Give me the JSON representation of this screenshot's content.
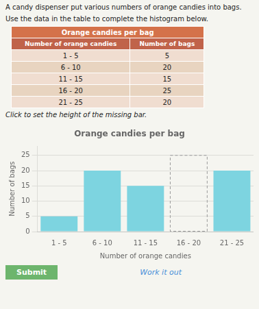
{
  "chart_data": {
    "type": "bar",
    "title": "Orange candies per bag",
    "xlabel": "Number of orange candies",
    "ylabel": "Number of bags",
    "categories": [
      "1 - 5",
      "6 - 10",
      "11 - 15",
      "16 - 20",
      "21 - 25"
    ],
    "values": [
      5,
      20,
      15,
      25,
      20
    ],
    "colors": [
      "#7dd4e0",
      "#7dd4e0",
      "#7dd4e0",
      "none",
      "#7dd4e0"
    ],
    "ylim": [
      0,
      28
    ],
    "yticks": [
      0,
      5,
      10,
      15,
      20,
      25
    ],
    "grid": true,
    "annotations": [
      "A candy dispenser put various numbers of orange candies into bags.",
      "Use the data in the table to complete the histogram below.",
      "Click to set the height of the missing bar.",
      "Submit",
      "Work it out"
    ]
  }
}
